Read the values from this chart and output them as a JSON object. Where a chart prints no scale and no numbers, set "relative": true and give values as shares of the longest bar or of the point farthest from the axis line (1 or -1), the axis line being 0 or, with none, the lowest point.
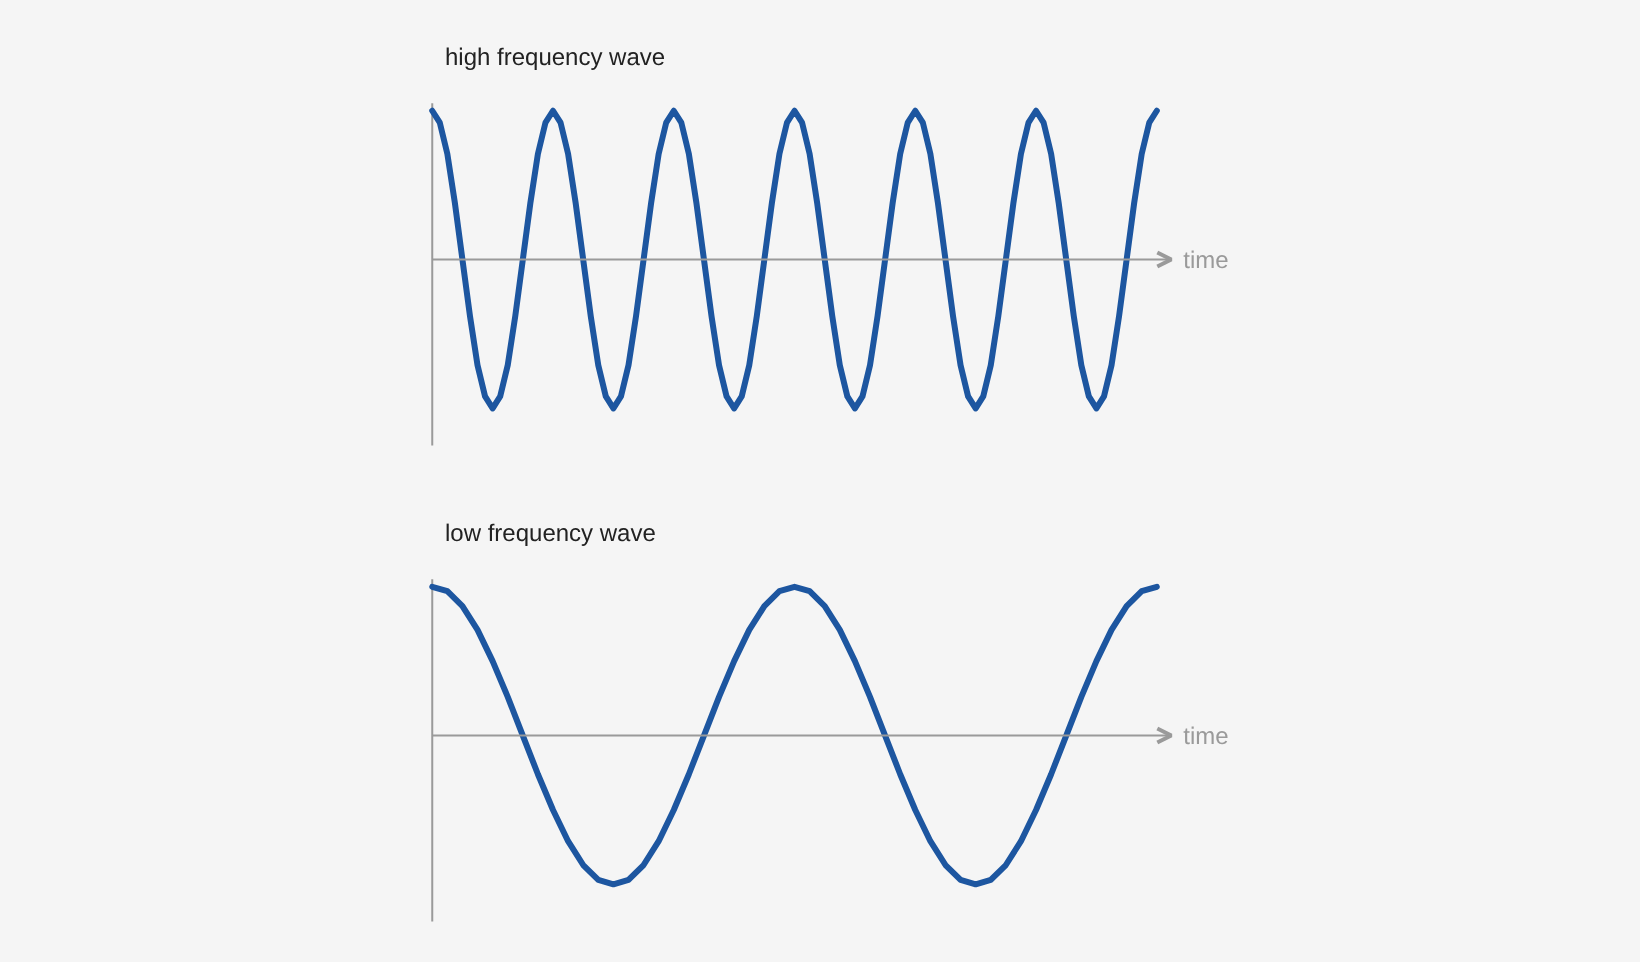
{
  "chart_data": [
    {
      "type": "line",
      "title": "high frequency wave",
      "xlabel": "time",
      "relative": true,
      "categories": [
        null,
        null,
        null,
        null,
        null,
        null,
        null,
        null,
        null,
        null,
        null,
        null,
        null,
        null,
        null,
        null,
        null,
        null,
        null,
        null,
        null,
        null,
        null,
        null,
        null,
        null,
        null,
        null,
        null,
        null,
        null,
        null,
        null,
        null,
        null,
        null,
        null,
        null,
        null,
        null,
        null,
        null,
        null,
        null,
        null,
        null,
        null,
        null,
        null,
        null,
        null,
        null,
        null,
        null,
        null,
        null,
        null,
        null,
        null,
        null,
        null,
        null,
        null,
        null,
        null,
        null,
        null,
        null,
        null,
        null,
        null,
        null,
        null,
        null,
        null,
        null,
        null,
        null,
        null,
        null,
        null,
        null,
        null,
        null,
        null,
        null,
        null,
        null,
        null,
        null,
        null,
        null,
        null,
        null,
        null,
        null,
        null
      ],
      "series": [
        {
          "color": "#1d56a0",
          "values": [
            1,
            0.92,
            0.71,
            0.38,
            0,
            -0.38,
            -0.71,
            -0.92,
            -1,
            -0.92,
            -0.71,
            -0.38,
            0,
            0.38,
            0.71,
            0.92,
            1,
            0.92,
            0.71,
            0.38,
            0,
            -0.38,
            -0.71,
            -0.92,
            -1,
            -0.92,
            -0.71,
            -0.38,
            0,
            0.38,
            0.71,
            0.92,
            1,
            0.92,
            0.71,
            0.38,
            0,
            -0.38,
            -0.71,
            -0.92,
            -1,
            -0.92,
            -0.71,
            -0.38,
            0,
            0.38,
            0.71,
            0.92,
            1,
            0.92,
            0.71,
            0.38,
            0,
            -0.38,
            -0.71,
            -0.92,
            -1,
            -0.92,
            -0.71,
            -0.38,
            0,
            0.38,
            0.71,
            0.92,
            1,
            0.92,
            0.71,
            0.38,
            0,
            -0.38,
            -0.71,
            -0.92,
            -1,
            -0.92,
            -0.71,
            -0.38,
            0,
            0.38,
            0.71,
            0.92,
            1,
            0.92,
            0.71,
            0.38,
            0,
            -0.38,
            -0.71,
            -0.92,
            -1,
            -0.92,
            -0.71,
            -0.38,
            0,
            0.38,
            0.71,
            0.92,
            1
          ]
        }
      ]
    },
    {
      "type": "line",
      "title": "low frequency wave",
      "xlabel": "time",
      "relative": true,
      "categories": [
        null,
        null,
        null,
        null,
        null,
        null,
        null,
        null,
        null,
        null,
        null,
        null,
        null,
        null,
        null,
        null,
        null,
        null,
        null,
        null,
        null,
        null,
        null,
        null,
        null,
        null,
        null,
        null,
        null,
        null,
        null,
        null,
        null,
        null,
        null,
        null,
        null,
        null,
        null,
        null,
        null,
        null,
        null,
        null,
        null,
        null,
        null,
        null,
        null
      ],
      "series": [
        {
          "color": "#1d56a0",
          "values": [
            1,
            0.97,
            0.87,
            0.71,
            0.5,
            0.26,
            0,
            -0.26,
            -0.5,
            -0.71,
            -0.87,
            -0.97,
            -1,
            -0.97,
            -0.87,
            -0.71,
            -0.5,
            -0.26,
            0,
            0.26,
            0.5,
            0.71,
            0.87,
            0.97,
            1,
            0.97,
            0.87,
            0.71,
            0.5,
            0.26,
            0,
            -0.26,
            -0.5,
            -0.71,
            -0.87,
            -0.97,
            -1,
            -0.97,
            -0.87,
            -0.71,
            -0.5,
            -0.26,
            0,
            0.26,
            0.5,
            0.71,
            0.87,
            0.97,
            1
          ]
        }
      ]
    }
  ]
}
